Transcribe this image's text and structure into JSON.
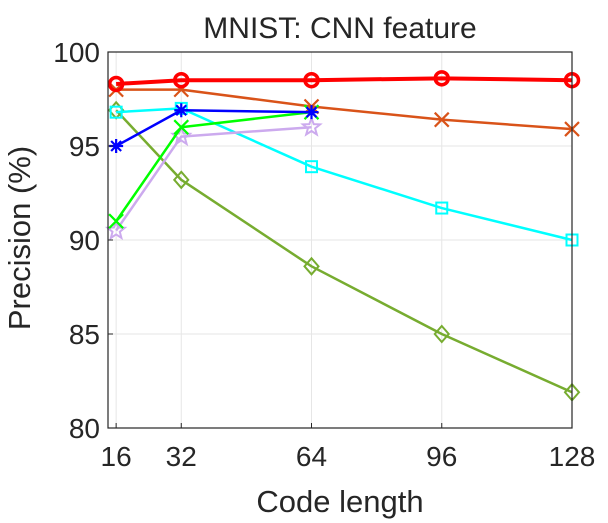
{
  "chart_data": {
    "type": "line",
    "title": "MNIST: CNN feature",
    "xlabel": "Code length",
    "ylabel": "Precision (%)",
    "x": [
      16,
      32,
      64,
      96,
      128
    ],
    "xlim": [
      14,
      128
    ],
    "ylim": [
      80,
      100
    ],
    "xticks": [
      "16",
      "32",
      "64",
      "96",
      "128"
    ],
    "yticks": [
      "80",
      "85",
      "90",
      "95",
      "100"
    ],
    "grid": true,
    "series": [
      {
        "color": "#77ac30",
        "marker": "diamond",
        "width": 2.5,
        "x": [
          16,
          32,
          64,
          96,
          128
        ],
        "values": [
          96.9,
          93.2,
          88.6,
          85.0,
          81.9
        ]
      },
      {
        "color": "#00ffff",
        "marker": "square",
        "width": 2.5,
        "x": [
          16,
          32,
          64,
          96,
          128
        ],
        "values": [
          96.8,
          97.0,
          93.9,
          91.7,
          90.0
        ]
      },
      {
        "color": "#d95319",
        "marker": "x",
        "width": 2.5,
        "x": [
          16,
          32,
          64,
          96,
          128
        ],
        "values": [
          98.0,
          98.0,
          97.1,
          96.4,
          95.9
        ]
      },
      {
        "color": "#ccaaee",
        "marker": "star",
        "width": 2.5,
        "x": [
          16,
          32,
          64
        ],
        "values": [
          90.5,
          95.5,
          96.0
        ]
      },
      {
        "color": "#00ff00",
        "marker": "x",
        "width": 2.5,
        "x": [
          16,
          32,
          64
        ],
        "values": [
          91.0,
          96.0,
          96.8
        ]
      },
      {
        "color": "#0000ff",
        "marker": "asterisk",
        "width": 2.5,
        "x": [
          16,
          32,
          64
        ],
        "values": [
          95.0,
          96.9,
          96.8
        ]
      },
      {
        "color": "#ff0000",
        "marker": "circle",
        "width": 4,
        "x": [
          16,
          32,
          64,
          96,
          128
        ],
        "values": [
          98.3,
          98.5,
          98.5,
          98.6,
          98.5
        ]
      }
    ]
  }
}
